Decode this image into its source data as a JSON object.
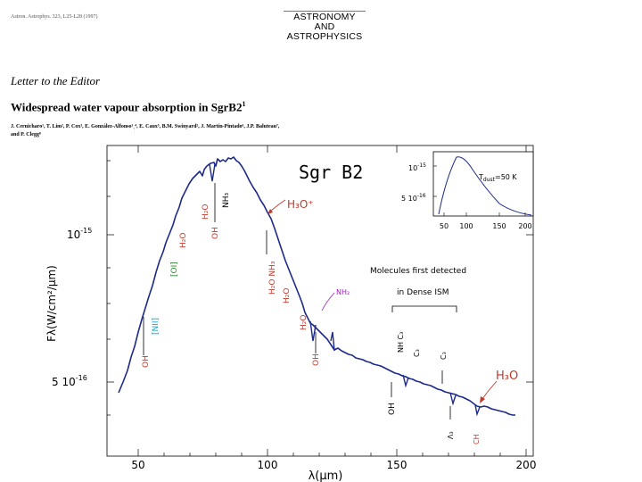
{
  "journal_ref": "Astron. Astrophys. 323, L25-L28 (1997)",
  "journal_logo": [
    "ASTRONOMY",
    "AND",
    "ASTROPHYSICS"
  ],
  "letter_label": "Letter to the Editor",
  "title": "Widespread water vapour absorption in SgrB2",
  "title_sup": "1",
  "authors_line1": "J. Cernicharo¹, T. Lim², P. Cox³, E. González-Alfonso¹ˎ⁴, E. Caux⁵, B.M. Swinyard², J. Martín-Pintado⁶, J.P. Baluteau⁷,",
  "authors_line2": "and P. Clegg⁸",
  "figure": {
    "source_label": "Sgr B2",
    "xlabel": "λ(μm)",
    "ylabel": "Fλ(W/cm²/μm)",
    "y_ticks": [
      {
        "base": "10",
        "exp": "-15",
        "value": 1e-15
      },
      {
        "base": "5 10",
        "exp": "-16",
        "value": 5e-16
      }
    ],
    "x_ticks": [
      "50",
      "100",
      "150",
      "200"
    ],
    "labels": {
      "h2o_1": "H₂O",
      "nh3_1": "NH₃",
      "h3o_plus": "H₃O⁺",
      "oh_1": "OH",
      "h2o_2": "H₂O",
      "oi": "[OI]",
      "h2o_nh3": "H₂O NH₃",
      "h2o_3": "H₂O",
      "nh2": "NH₂",
      "h2o_4": "H₂O",
      "nii": "[NII]",
      "oh_2": "OH",
      "oh_3": "OH",
      "molecules_line1": "Molecules first detected",
      "molecules_line2": "in Dense ISM",
      "nh_c3": "NH  C₃",
      "c3_1": "C₃",
      "c3_2": "C₃",
      "oh_4": "OH",
      "h3o_right": "H₃O",
      "nh3_2": "Λ₃",
      "ch": "CH"
    },
    "inset": {
      "y_ticks": [
        {
          "base": "10",
          "exp": "-15"
        },
        {
          "base": "5 10",
          "exp": "-16"
        }
      ],
      "x_ticks": [
        "50",
        "100",
        "150",
        "200"
      ],
      "tdust_label": "T",
      "tdust_sub": "dust",
      "tdust_value": "=50 K"
    }
  }
}
